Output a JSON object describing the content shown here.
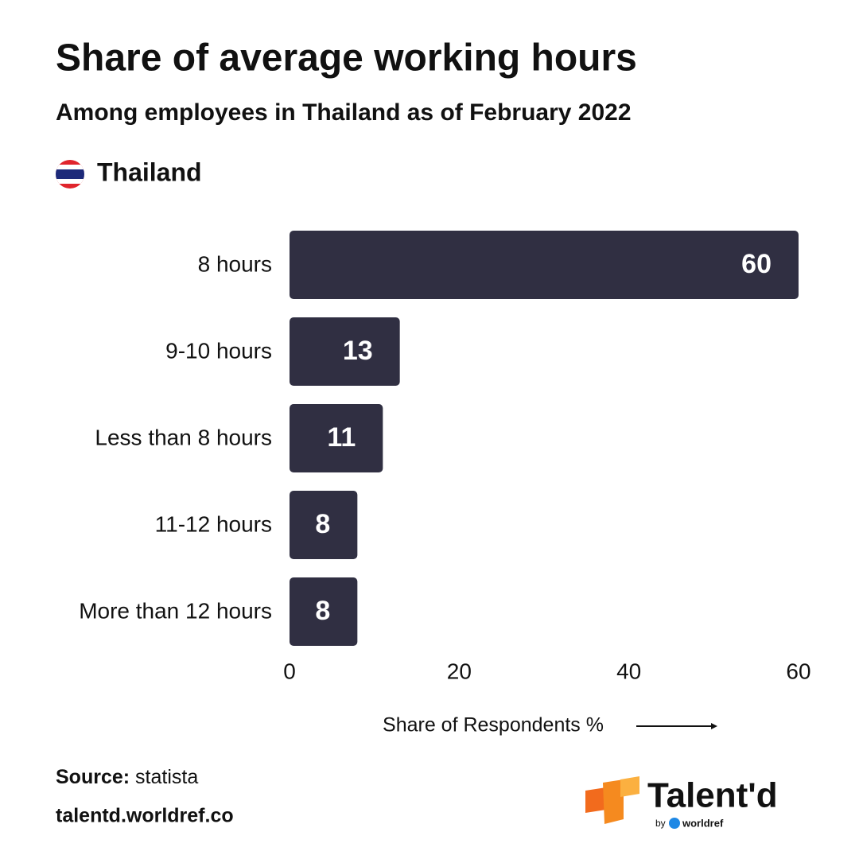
{
  "chart_data": {
    "type": "bar",
    "orientation": "horizontal",
    "title": "Share of average working hours",
    "subtitle": "Among employees in Thailand as of February 2022",
    "categories": [
      "8 hours",
      "9-10 hours",
      "Less than 8 hours",
      "11-12 hours",
      "More than 12 hours"
    ],
    "series": [
      {
        "name": "Thailand",
        "color": "#302f42",
        "values": [
          60,
          13,
          11,
          8,
          8
        ]
      }
    ],
    "xlim": [
      0,
      60
    ],
    "xticks": [
      0,
      20,
      40,
      60
    ],
    "x_label": "Share of Respondents %",
    "grid": false
  },
  "footer": {
    "source_label": "Source:",
    "source": "statista",
    "website": "talentd.worldref.co"
  },
  "logo": {
    "name": "Talent'd",
    "by": "by",
    "brand": "worldref"
  }
}
